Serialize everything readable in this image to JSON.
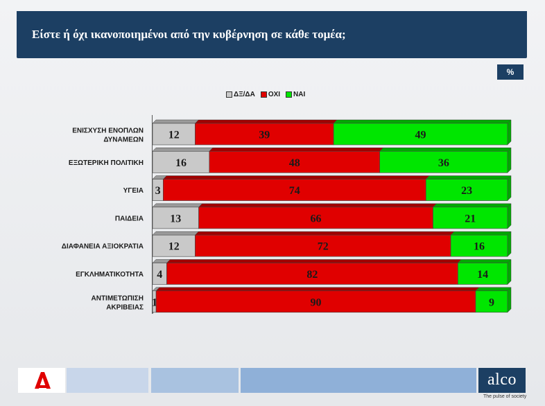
{
  "header": {
    "title": "Είστε ή όχι ικανοποιημένοι από την κυβέρνηση σε κάθε τομέα;"
  },
  "unit_badge": "%",
  "footer": {
    "brand": "alco",
    "tagline": "The pulse of society"
  },
  "colors": {
    "dk": "#c9c9c9",
    "no": "#e00000",
    "yes": "#00e600",
    "header": "#1c3f63"
  },
  "chart_data": {
    "type": "bar",
    "orientation": "horizontal",
    "stacked": true,
    "categories": [
      [
        "ΕΝΙΣΧΥΣΗ ΕΝΟΠΛΩΝ",
        "ΔΥΝΑΜΕΩΝ"
      ],
      [
        "ΕΞΩΤΕΡΙΚΗ ΠΟΛΙΤΙΚΗ"
      ],
      [
        "ΥΓΕΙΑ"
      ],
      [
        "ΠΑΙΔΕΙΑ"
      ],
      [
        "ΔΙΑΦΑΝΕΙΑ ΑΞΙΟΚΡΑΤΙΑ"
      ],
      [
        "ΕΓΚΛΗΜΑΤΙΚΟΤΗΤΑ"
      ],
      [
        "ΑΝΤΙΜΕΤΩΠΙΣΗ",
        "ΑΚΡΙΒΕΙΑΣ"
      ]
    ],
    "series": [
      {
        "name": "ΔΞ/ΔΑ",
        "color": "#c9c9c9",
        "values": [
          12,
          16,
          3,
          13,
          12,
          4,
          1
        ]
      },
      {
        "name": "ΟΧΙ",
        "color": "#e00000",
        "values": [
          39,
          48,
          74,
          66,
          72,
          82,
          90
        ]
      },
      {
        "name": "ΝΑΙ",
        "color": "#00e600",
        "values": [
          49,
          36,
          23,
          21,
          16,
          14,
          9
        ]
      }
    ],
    "xlim": [
      0,
      100
    ],
    "legend_position": "top-center",
    "grid": false
  }
}
